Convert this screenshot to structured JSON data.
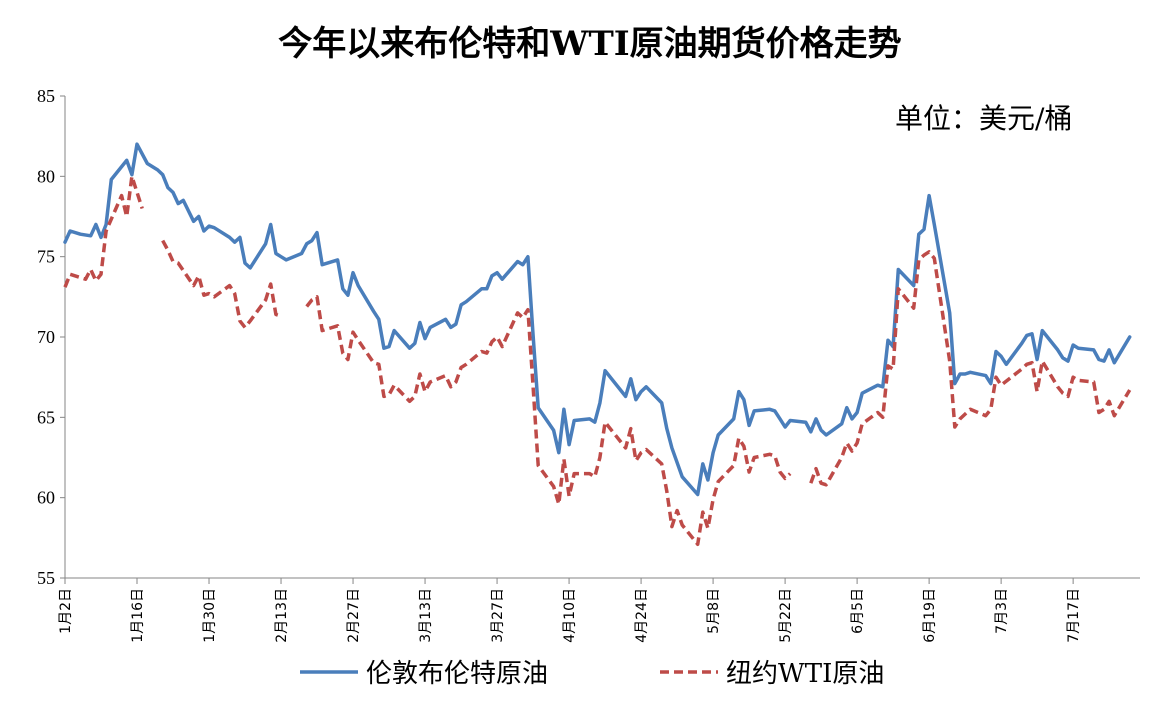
{
  "chart_data": {
    "type": "line",
    "title": "今年以来布伦特和WTI原油期货价格走势",
    "unit_label": "单位：美元/桶",
    "ylim": [
      55,
      85
    ],
    "yticks": [
      55,
      60,
      65,
      70,
      75,
      80,
      85
    ],
    "x_start": "01-02",
    "x_end": "07-30",
    "xtick_dates": [
      "01-02",
      "01-16",
      "01-30",
      "02-13",
      "02-27",
      "03-13",
      "03-27",
      "04-10",
      "04-24",
      "05-08",
      "05-22",
      "06-05",
      "06-19",
      "07-03",
      "07-17"
    ],
    "xtick_labels": [
      "1月2日",
      "1月16日",
      "1月30日",
      "2月13日",
      "2月27日",
      "3月13日",
      "3月27日",
      "4月10日",
      "4月24日",
      "5月8日",
      "5月22日",
      "6月5日",
      "6月19日",
      "7月3日",
      "7月17日"
    ],
    "legend_position": "bottom",
    "grid": false,
    "series": [
      {
        "name": "伦敦布伦特原油",
        "color": "#4a7ebb",
        "style": "solid",
        "points": [
          [
            "01-02",
            75.9
          ],
          [
            "01-03",
            76.6
          ],
          [
            "01-05",
            76.4
          ],
          [
            "01-07",
            76.3
          ],
          [
            "01-08",
            77.0
          ],
          [
            "01-09",
            76.2
          ],
          [
            "01-10",
            77.0
          ],
          [
            "01-11",
            79.8
          ],
          [
            "01-14",
            81.0
          ],
          [
            "01-15",
            80.1
          ],
          [
            "01-16",
            82.0
          ],
          [
            "01-18",
            80.8
          ],
          [
            "01-20",
            80.4
          ],
          [
            "01-21",
            80.1
          ],
          [
            "01-22",
            79.3
          ],
          [
            "01-23",
            79.0
          ],
          [
            "01-24",
            78.3
          ],
          [
            "01-25",
            78.5
          ],
          [
            "01-27",
            77.2
          ],
          [
            "01-28",
            77.5
          ],
          [
            "01-29",
            76.6
          ],
          [
            "01-30",
            76.9
          ],
          [
            "01-31",
            76.8
          ],
          [
            "02-03",
            76.2
          ],
          [
            "02-04",
            75.9
          ],
          [
            "02-05",
            76.2
          ],
          [
            "02-06",
            74.6
          ],
          [
            "02-07",
            74.3
          ],
          [
            "02-10",
            75.8
          ],
          [
            "02-11",
            77.0
          ],
          [
            "02-12",
            75.2
          ],
          [
            "02-13",
            75.0
          ],
          [
            "02-14",
            74.8
          ],
          [
            "02-17",
            75.2
          ],
          [
            "02-18",
            75.8
          ],
          [
            "02-19",
            76.0
          ],
          [
            "02-20",
            76.5
          ],
          [
            "02-21",
            74.5
          ],
          [
            "02-24",
            74.8
          ],
          [
            "02-25",
            73.0
          ],
          [
            "02-26",
            72.6
          ],
          [
            "02-27",
            74.0
          ],
          [
            "02-28",
            73.2
          ],
          [
            "03-03",
            71.6
          ],
          [
            "03-04",
            71.1
          ],
          [
            "03-05",
            69.3
          ],
          [
            "03-06",
            69.4
          ],
          [
            "03-07",
            70.4
          ],
          [
            "03-10",
            69.3
          ],
          [
            "03-11",
            69.6
          ],
          [
            "03-12",
            70.9
          ],
          [
            "03-13",
            69.9
          ],
          [
            "03-14",
            70.6
          ],
          [
            "03-17",
            71.1
          ],
          [
            "03-18",
            70.6
          ],
          [
            "03-19",
            70.8
          ],
          [
            "03-20",
            72.0
          ],
          [
            "03-21",
            72.2
          ],
          [
            "03-24",
            73.0
          ],
          [
            "03-25",
            73.0
          ],
          [
            "03-26",
            73.8
          ],
          [
            "03-27",
            74.0
          ],
          [
            "03-28",
            73.6
          ],
          [
            "03-31",
            74.7
          ],
          [
            "04-01",
            74.5
          ],
          [
            "04-02",
            75.0
          ],
          [
            "04-03",
            70.1
          ],
          [
            "04-04",
            65.6
          ],
          [
            "04-07",
            64.2
          ],
          [
            "04-08",
            62.8
          ],
          [
            "04-09",
            65.5
          ],
          [
            "04-10",
            63.3
          ],
          [
            "04-11",
            64.8
          ],
          [
            "04-14",
            64.9
          ],
          [
            "04-15",
            64.7
          ],
          [
            "04-16",
            65.9
          ],
          [
            "04-17",
            67.9
          ],
          [
            "04-21",
            66.3
          ],
          [
            "04-22",
            67.4
          ],
          [
            "04-23",
            66.1
          ],
          [
            "04-24",
            66.6
          ],
          [
            "04-25",
            66.9
          ],
          [
            "04-28",
            65.9
          ],
          [
            "04-29",
            64.3
          ],
          [
            "04-30",
            63.1
          ],
          [
            "05-02",
            61.3
          ],
          [
            "05-05",
            60.2
          ],
          [
            "05-06",
            62.1
          ],
          [
            "05-07",
            61.1
          ],
          [
            "05-08",
            62.8
          ],
          [
            "05-09",
            63.9
          ],
          [
            "05-12",
            64.9
          ],
          [
            "05-13",
            66.6
          ],
          [
            "05-14",
            66.1
          ],
          [
            "05-15",
            64.5
          ],
          [
            "05-16",
            65.4
          ],
          [
            "05-19",
            65.5
          ],
          [
            "05-20",
            65.4
          ],
          [
            "05-21",
            64.9
          ],
          [
            "05-22",
            64.4
          ],
          [
            "05-23",
            64.8
          ],
          [
            "05-26",
            64.7
          ],
          [
            "05-27",
            64.1
          ],
          [
            "05-28",
            64.9
          ],
          [
            "05-29",
            64.2
          ],
          [
            "05-30",
            63.9
          ],
          [
            "06-02",
            64.6
          ],
          [
            "06-03",
            65.6
          ],
          [
            "06-04",
            64.9
          ],
          [
            "06-05",
            65.3
          ],
          [
            "06-06",
            66.5
          ],
          [
            "06-09",
            67.0
          ],
          [
            "06-10",
            66.9
          ],
          [
            "06-11",
            69.8
          ],
          [
            "06-12",
            69.4
          ],
          [
            "06-13",
            74.2
          ],
          [
            "06-16",
            73.2
          ],
          [
            "06-17",
            76.4
          ],
          [
            "06-18",
            76.7
          ],
          [
            "06-19",
            78.8
          ],
          [
            "06-20",
            77.0
          ],
          [
            "06-23",
            71.5
          ],
          [
            "06-24",
            67.1
          ],
          [
            "06-25",
            67.7
          ],
          [
            "06-26",
            67.7
          ],
          [
            "06-27",
            67.8
          ],
          [
            "06-30",
            67.6
          ],
          [
            "07-01",
            67.1
          ],
          [
            "07-02",
            69.1
          ],
          [
            "07-03",
            68.8
          ],
          [
            "07-04",
            68.3
          ],
          [
            "07-07",
            69.6
          ],
          [
            "07-08",
            70.1
          ],
          [
            "07-09",
            70.2
          ],
          [
            "07-10",
            68.6
          ],
          [
            "07-11",
            70.4
          ],
          [
            "07-14",
            69.2
          ],
          [
            "07-15",
            68.7
          ],
          [
            "07-16",
            68.5
          ],
          [
            "07-17",
            69.5
          ],
          [
            "07-18",
            69.3
          ],
          [
            "07-21",
            69.2
          ],
          [
            "07-22",
            68.6
          ],
          [
            "07-23",
            68.5
          ],
          [
            "07-24",
            69.2
          ],
          [
            "07-25",
            68.4
          ],
          [
            "07-28",
            70.0
          ]
        ]
      },
      {
        "name": "纽约WTI原油",
        "color": "#be4b48",
        "style": "dashed",
        "points": [
          [
            "01-02",
            73.1
          ],
          [
            "01-03",
            73.9
          ],
          [
            "01-06",
            73.6
          ],
          [
            "01-07",
            74.2
          ],
          [
            "01-08",
            73.5
          ],
          [
            "01-09",
            73.9
          ],
          [
            "01-10",
            76.6
          ],
          [
            "01-13",
            78.8
          ],
          [
            "01-14",
            77.5
          ],
          [
            "01-15",
            80.0
          ],
          [
            "01-17",
            78.0
          ],
          null,
          [
            "01-21",
            76.0
          ],
          [
            "01-22",
            75.4
          ],
          [
            "01-23",
            74.7
          ],
          [
            "01-24",
            74.6
          ],
          [
            "01-27",
            73.2
          ],
          [
            "01-28",
            73.8
          ],
          [
            "01-29",
            72.6
          ],
          [
            "01-30",
            72.7
          ],
          [
            "01-31",
            72.5
          ],
          [
            "02-03",
            73.2
          ],
          [
            "02-04",
            72.7
          ],
          [
            "02-05",
            71.0
          ],
          [
            "02-06",
            70.6
          ],
          [
            "02-07",
            71.0
          ],
          [
            "02-10",
            72.3
          ],
          [
            "02-11",
            73.3
          ],
          [
            "02-12",
            71.4
          ],
          [
            "02-13",
            71.3
          ],
          null,
          [
            "02-18",
            71.9
          ],
          [
            "02-19",
            72.3
          ],
          [
            "02-20",
            72.5
          ],
          [
            "02-21",
            70.4
          ],
          [
            "02-24",
            70.7
          ],
          [
            "02-25",
            69.0
          ],
          [
            "02-26",
            68.6
          ],
          [
            "02-27",
            70.3
          ],
          [
            "02-28",
            69.8
          ],
          [
            "03-03",
            68.4
          ],
          [
            "03-04",
            68.3
          ],
          [
            "03-05",
            66.3
          ],
          [
            "03-06",
            66.4
          ],
          [
            "03-07",
            67.0
          ],
          [
            "03-10",
            66.0
          ],
          [
            "03-11",
            66.3
          ],
          [
            "03-12",
            67.7
          ],
          [
            "03-13",
            66.6
          ],
          [
            "03-14",
            67.2
          ],
          [
            "03-17",
            67.6
          ],
          [
            "03-18",
            66.9
          ],
          [
            "03-19",
            67.2
          ],
          [
            "03-20",
            68.1
          ],
          [
            "03-21",
            68.3
          ],
          [
            "03-24",
            69.1
          ],
          [
            "03-25",
            69.0
          ],
          [
            "03-26",
            69.7
          ],
          [
            "03-27",
            70.0
          ],
          [
            "03-28",
            69.4
          ],
          [
            "03-31",
            71.5
          ],
          [
            "04-01",
            71.2
          ],
          [
            "04-02",
            71.7
          ],
          [
            "04-03",
            66.9
          ],
          [
            "04-04",
            62.0
          ],
          [
            "04-07",
            60.7
          ],
          [
            "04-08",
            59.6
          ],
          [
            "04-09",
            62.4
          ],
          [
            "04-10",
            60.1
          ],
          [
            "04-11",
            61.5
          ],
          [
            "04-14",
            61.5
          ],
          [
            "04-15",
            61.3
          ],
          [
            "04-16",
            62.5
          ],
          [
            "04-17",
            64.7
          ],
          [
            "04-21",
            63.1
          ],
          [
            "04-22",
            64.3
          ],
          [
            "04-23",
            62.3
          ],
          [
            "04-24",
            62.8
          ],
          [
            "04-25",
            63.0
          ],
          [
            "04-28",
            62.1
          ],
          [
            "04-29",
            60.4
          ],
          [
            "04-30",
            58.2
          ],
          [
            "05-01",
            59.2
          ],
          [
            "05-02",
            58.3
          ],
          [
            "05-05",
            57.1
          ],
          [
            "05-06",
            59.1
          ],
          [
            "05-07",
            58.1
          ],
          [
            "05-08",
            59.9
          ],
          [
            "05-09",
            61.0
          ],
          [
            "05-12",
            62.0
          ],
          [
            "05-13",
            63.7
          ],
          [
            "05-14",
            63.2
          ],
          [
            "05-15",
            61.6
          ],
          [
            "05-16",
            62.5
          ],
          [
            "05-19",
            62.7
          ],
          [
            "05-20",
            62.6
          ],
          [
            "05-21",
            61.6
          ],
          [
            "05-22",
            61.2
          ],
          [
            "05-23",
            61.5
          ],
          null,
          [
            "05-27",
            60.9
          ],
          [
            "05-28",
            61.8
          ],
          [
            "05-29",
            60.9
          ],
          [
            "05-30",
            60.8
          ],
          [
            "06-02",
            62.5
          ],
          [
            "06-03",
            63.4
          ],
          [
            "06-04",
            62.9
          ],
          [
            "06-05",
            63.4
          ],
          [
            "06-06",
            64.6
          ],
          [
            "06-09",
            65.3
          ],
          [
            "06-10",
            65.0
          ],
          [
            "06-11",
            68.2
          ],
          [
            "06-12",
            68.0
          ],
          [
            "06-13",
            73.0
          ],
          [
            "06-16",
            71.8
          ],
          [
            "06-17",
            74.8
          ],
          [
            "06-18",
            75.1
          ],
          [
            "06-19",
            75.3
          ],
          [
            "06-20",
            74.9
          ],
          [
            "06-23",
            68.5
          ],
          [
            "06-24",
            64.4
          ],
          [
            "06-25",
            64.9
          ],
          [
            "06-26",
            65.2
          ],
          [
            "06-27",
            65.5
          ],
          [
            "06-30",
            65.1
          ],
          [
            "07-01",
            65.5
          ],
          [
            "07-02",
            67.5
          ],
          [
            "07-03",
            67.0
          ],
          [
            "07-07",
            68.0
          ],
          [
            "07-08",
            68.3
          ],
          [
            "07-09",
            68.4
          ],
          [
            "07-10",
            66.6
          ],
          [
            "07-11",
            68.5
          ],
          [
            "07-14",
            66.9
          ],
          [
            "07-15",
            66.5
          ],
          [
            "07-16",
            66.3
          ],
          [
            "07-17",
            67.5
          ],
          [
            "07-18",
            67.3
          ],
          [
            "07-21",
            67.2
          ],
          [
            "07-22",
            65.3
          ],
          [
            "07-23",
            65.5
          ],
          [
            "07-24",
            66.0
          ],
          [
            "07-25",
            65.1
          ],
          [
            "07-28",
            66.7
          ]
        ]
      }
    ]
  }
}
